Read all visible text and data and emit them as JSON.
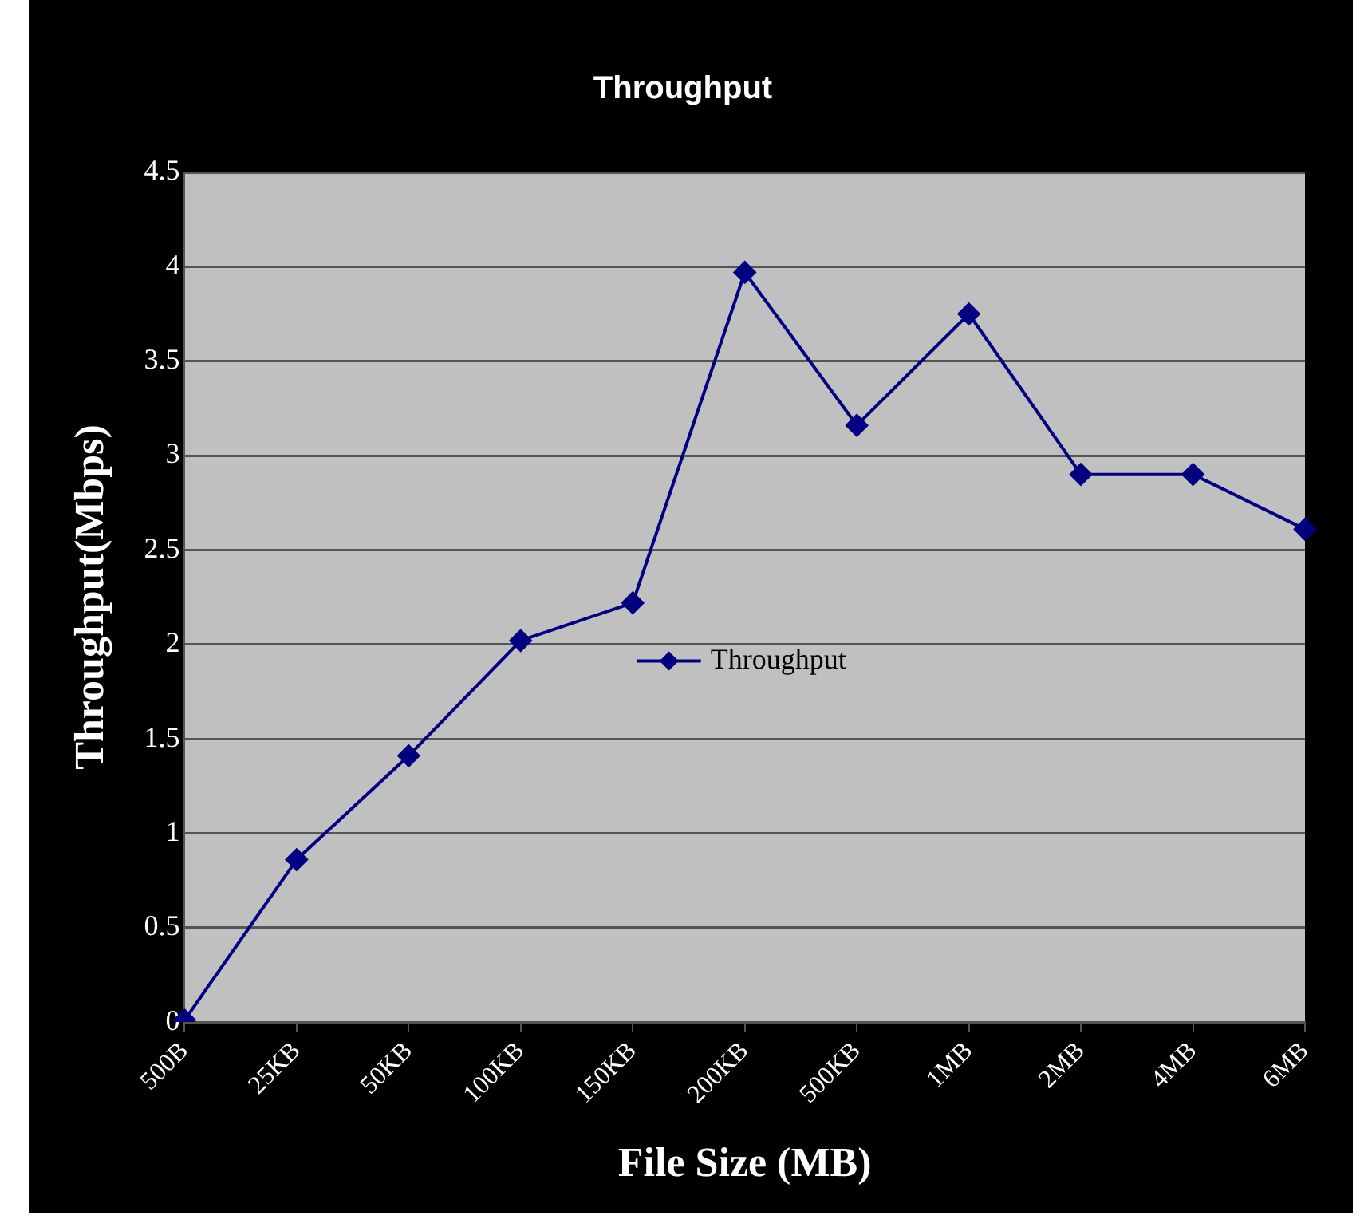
{
  "chart_data": {
    "type": "line",
    "title": "Throughput",
    "xlabel": "File Size (MB)",
    "ylabel": "Throughput(Mbps)",
    "categories": [
      "500B",
      "25KB",
      "50KB",
      "100KB",
      "150KB",
      "200KB",
      "500KB",
      "1MB",
      "2MB",
      "4MB",
      "6MB"
    ],
    "series": [
      {
        "name": "Throughput",
        "color": "#000080",
        "values": [
          0.01,
          0.86,
          1.41,
          2.02,
          2.22,
          3.97,
          3.16,
          3.75,
          2.9,
          2.9,
          2.61
        ]
      }
    ],
    "ylim": [
      0,
      4.5
    ],
    "yticks": [
      0,
      0.5,
      1,
      1.5,
      2,
      2.5,
      3,
      3.5,
      4,
      4.5
    ],
    "grid": "y",
    "legend": "center",
    "marker": "diamond",
    "line_style": "solid"
  }
}
